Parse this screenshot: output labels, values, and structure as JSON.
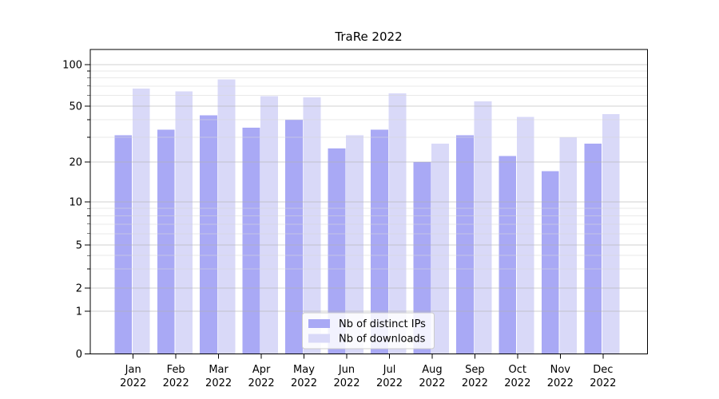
{
  "title": "TraRe 2022",
  "y_axis": {
    "tick_labels": [
      "100",
      "50",
      "20",
      "10",
      "5",
      "2",
      "1",
      "0"
    ],
    "tick_values": [
      100,
      50,
      20,
      10,
      5,
      2,
      1,
      0
    ],
    "minor_gridline_values": [
      3,
      4,
      6,
      7,
      8,
      9,
      30,
      40,
      60,
      70,
      80,
      90
    ]
  },
  "x_axis": {
    "months": [
      "Jan",
      "Feb",
      "Mar",
      "Apr",
      "May",
      "Jun",
      "Jul",
      "Aug",
      "Sep",
      "Oct",
      "Nov",
      "Dec"
    ],
    "year": "2022"
  },
  "legend": {
    "items": [
      {
        "label": "Nb of distinct IPs",
        "color": "#a9a9f5"
      },
      {
        "label": "Nb of downloads",
        "color": "#d9d9f8"
      }
    ]
  },
  "chart_data": {
    "type": "bar",
    "title": "TraRe 2022",
    "xlabel": "",
    "ylabel": "",
    "yscale": "symlog",
    "ylim": [
      0,
      130
    ],
    "grid": true,
    "legend_position": "lower center",
    "categories": [
      "Jan 2022",
      "Feb 2022",
      "Mar 2022",
      "Apr 2022",
      "May 2022",
      "Jun 2022",
      "Jul 2022",
      "Aug 2022",
      "Sep 2022",
      "Oct 2022",
      "Nov 2022",
      "Dec 2022"
    ],
    "y_ticks": [
      0,
      1,
      2,
      5,
      10,
      20,
      50,
      100
    ],
    "series": [
      {
        "name": "Nb of distinct IPs",
        "color": "#a9a9f5",
        "values": [
          31,
          34,
          43,
          35,
          40,
          25,
          34,
          20,
          31,
          22,
          17,
          27
        ]
      },
      {
        "name": "Nb of downloads",
        "color": "#d9d9f8",
        "values": [
          67,
          64,
          78,
          59,
          58,
          31,
          62,
          27,
          54,
          42,
          30,
          44
        ]
      }
    ]
  }
}
